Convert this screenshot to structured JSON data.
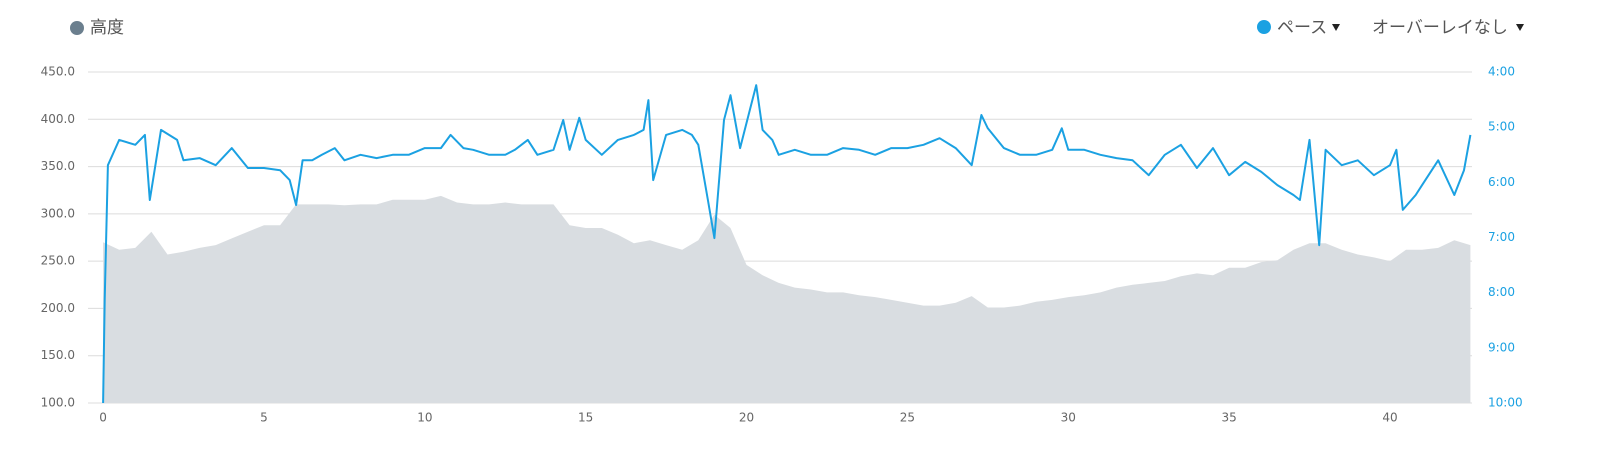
{
  "chart_data": {
    "type": "dual-axis-area-line",
    "xlim": [
      -0.47,
      42.55
    ],
    "xticks": [
      0,
      5,
      10,
      15,
      20,
      25,
      30,
      35,
      40
    ],
    "ylim": [
      100,
      450
    ],
    "yticks": [
      {
        "value": 100,
        "label": "100.0"
      },
      {
        "value": 150,
        "label": "150.0"
      },
      {
        "value": 200,
        "label": "200.0"
      },
      {
        "value": 250,
        "label": "250.0"
      },
      {
        "value": 300,
        "label": "300.0"
      },
      {
        "value": 350,
        "label": "350.0"
      },
      {
        "value": 400,
        "label": "400.0"
      },
      {
        "value": 450,
        "label": "450.0"
      }
    ],
    "y2lim": [
      10,
      4
    ],
    "y2ticks": [
      {
        "value": 4,
        "label": "4:00"
      },
      {
        "value": 5,
        "label": "5:00"
      },
      {
        "value": 6,
        "label": "6:00"
      },
      {
        "value": 7,
        "label": "7:00"
      },
      {
        "value": 8,
        "label": "8:00"
      },
      {
        "value": 9,
        "label": "9:00"
      },
      {
        "value": 10,
        "label": "10:00"
      }
    ],
    "grid": true,
    "overlay": "オーバーレイなし",
    "series": [
      {
        "name": "高度",
        "kind": "area",
        "color": "#d9dde1",
        "legend_color": "#6b7f8e",
        "x": [
          0,
          0.5,
          1,
          1.5,
          2,
          2.5,
          3,
          3.5,
          4,
          4.5,
          5,
          5.5,
          6,
          6.5,
          7,
          7.5,
          8,
          8.5,
          9,
          9.5,
          10,
          10.5,
          11,
          11.5,
          12,
          12.5,
          13,
          13.5,
          14,
          14.5,
          15,
          15.5,
          16,
          16.5,
          17,
          17.5,
          18,
          18.5,
          19,
          19.5,
          20,
          20.5,
          21,
          21.5,
          22,
          22.5,
          23,
          23.5,
          24,
          24.5,
          25,
          25.5,
          26,
          26.5,
          27,
          27.5,
          28,
          28.5,
          29,
          29.5,
          30,
          30.5,
          31,
          31.5,
          32,
          32.5,
          33,
          33.5,
          34,
          34.5,
          35,
          35.5,
          36,
          36.5,
          37,
          37.5,
          38,
          38.5,
          39,
          39.5,
          40,
          40.5,
          41,
          41.5,
          42,
          42.5
        ],
        "values": [
          270,
          262,
          264,
          281,
          257,
          260,
          264,
          267,
          274,
          281,
          288,
          288,
          310,
          310,
          310,
          309,
          310,
          310,
          315,
          315,
          315,
          319,
          312,
          310,
          310,
          312,
          310,
          310,
          310,
          288,
          285,
          285,
          278,
          269,
          272,
          267,
          262,
          272,
          299,
          285,
          246,
          235,
          227,
          222,
          220,
          217,
          217,
          214,
          212,
          209,
          206,
          203,
          203,
          206,
          213,
          201,
          201,
          203,
          207,
          209,
          212,
          214,
          217,
          222,
          225,
          227,
          229,
          234,
          237,
          235,
          243,
          243,
          249,
          251,
          262,
          269,
          269,
          262,
          257,
          254,
          250,
          262,
          262,
          264,
          272,
          267
        ]
      },
      {
        "name": "ペース",
        "kind": "line",
        "axis": "y2",
        "color": "#1ba1e2",
        "x": [
          0,
          0.05,
          0.15,
          0.5,
          1,
          1.3,
          1.45,
          1.6,
          1.8,
          2.3,
          2.5,
          3,
          3.5,
          4,
          4.5,
          5,
          5.5,
          5.8,
          6,
          6.2,
          6.5,
          6.8,
          7.2,
          7.5,
          8,
          8.5,
          9,
          9.5,
          10,
          10.5,
          10.8,
          11.2,
          11.5,
          12,
          12.5,
          12.8,
          13.2,
          13.5,
          14,
          14.3,
          14.5,
          14.8,
          15,
          15.5,
          16,
          16.5,
          16.8,
          16.95,
          17.1,
          17.5,
          18,
          18.3,
          18.5,
          18.8,
          19,
          19.3,
          19.5,
          19.8,
          20.1,
          20.3,
          20.5,
          20.8,
          21,
          21.5,
          22,
          22.5,
          23,
          23.5,
          24,
          24.5,
          25,
          25.5,
          26,
          26.5,
          27,
          27.3,
          27.5,
          28,
          28.5,
          29,
          29.5,
          29.8,
          30,
          30.5,
          31,
          31.5,
          32,
          32.5,
          33,
          33.5,
          34,
          34.5,
          35,
          35.5,
          36,
          36.5,
          37,
          37.2,
          37.5,
          37.8,
          38,
          38.5,
          39,
          39.5,
          40,
          40.2,
          40.4,
          40.8,
          41,
          41.5,
          42,
          42.3,
          42.5
        ],
        "values": [
          10.0,
          8.13,
          5.69,
          5.23,
          5.32,
          5.14,
          6.32,
          5.78,
          5.05,
          5.23,
          5.6,
          5.56,
          5.69,
          5.38,
          5.74,
          5.74,
          5.78,
          5.96,
          6.41,
          5.6,
          5.6,
          5.5,
          5.38,
          5.6,
          5.5,
          5.56,
          5.5,
          5.5,
          5.38,
          5.38,
          5.14,
          5.38,
          5.41,
          5.5,
          5.5,
          5.41,
          5.23,
          5.5,
          5.41,
          4.87,
          5.41,
          4.83,
          5.23,
          5.5,
          5.23,
          5.14,
          5.05,
          4.51,
          5.96,
          5.14,
          5.05,
          5.14,
          5.32,
          6.32,
          7.01,
          4.87,
          4.42,
          5.38,
          4.69,
          4.24,
          5.05,
          5.23,
          5.5,
          5.41,
          5.5,
          5.5,
          5.38,
          5.41,
          5.5,
          5.38,
          5.38,
          5.32,
          5.2,
          5.38,
          5.69,
          4.78,
          5.02,
          5.38,
          5.5,
          5.5,
          5.41,
          5.02,
          5.41,
          5.41,
          5.5,
          5.56,
          5.6,
          5.87,
          5.5,
          5.32,
          5.74,
          5.38,
          5.87,
          5.63,
          5.81,
          6.05,
          6.23,
          6.32,
          5.23,
          7.14,
          5.41,
          5.69,
          5.6,
          5.87,
          5.69,
          5.41,
          6.5,
          6.23,
          6.05,
          5.6,
          6.23,
          5.78,
          5.14
        ]
      }
    ]
  }
}
